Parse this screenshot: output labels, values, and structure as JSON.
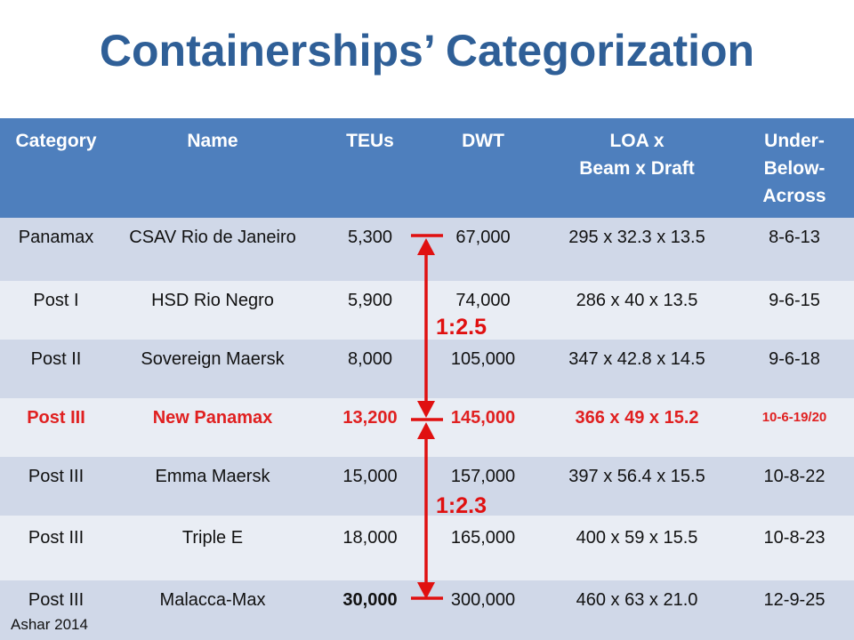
{
  "title": "Containerships’ Categorization",
  "headers": {
    "category": "Category",
    "name": "Name",
    "teus": "TEUs",
    "dwt": "DWT",
    "dims_line1": "LOA x",
    "dims_line2": "Beam x Draft",
    "uba_line1": "Under-",
    "uba_line2": "Below-",
    "uba_line3": "Across"
  },
  "rows": [
    {
      "category": "Panamax",
      "name": "CSAV  Rio de Janeiro",
      "teus": "5,300",
      "dwt": "67,000",
      "dims": "295 x 32.3 x 13.5",
      "uba": "8-6-13"
    },
    {
      "category": "Post I",
      "name": "HSD Rio Negro",
      "teus": "5,900",
      "dwt": "74,000",
      "dims": "286 x 40 x 13.5",
      "uba": "9-6-15"
    },
    {
      "category": "Post  II",
      "name": "Sovereign Maersk",
      "teus": "8,000",
      "dwt": "105,000",
      "dims": "347 x 42.8 x 14.5",
      "uba": "9-6-18"
    },
    {
      "category": "Post III",
      "name": "New Panamax",
      "teus": "13,200",
      "dwt": "145,000",
      "dims": "366 x 49 x 15.2",
      "uba": "10-6-19/20"
    },
    {
      "category": "Post III",
      "name": "Emma Maersk",
      "teus": "15,000",
      "dwt": "157,000",
      "dims": "397 x 56.4 x 15.5",
      "uba": "10-8-22"
    },
    {
      "category": "Post III",
      "name": "Triple E",
      "teus": "18,000",
      "dwt": "165,000",
      "dims": "400 x 59 x 15.5",
      "uba": "10-8-23"
    },
    {
      "category": "Post III",
      "name": "Malacca-Max",
      "teus": "30,000",
      "dwt": "300,000",
      "dims": "460 x 63 x 21.0",
      "uba": "12-9-25"
    }
  ],
  "annotations": {
    "ratio_upper": "1:2.5",
    "ratio_lower": "1:2.3",
    "arrow_color": "#e01010"
  },
  "credit": "Ashar 2014",
  "colors": {
    "title": "#2f5f97",
    "header_bg": "#4e7fbd",
    "row_dark": "#d0d8e8",
    "row_light": "#e9edf4",
    "highlight_text": "#e02020"
  }
}
